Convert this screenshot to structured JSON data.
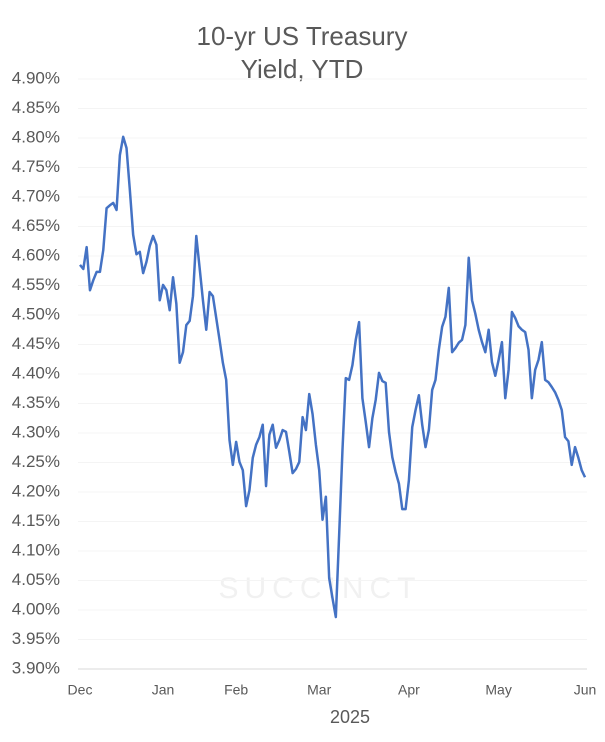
{
  "chart_data": {
    "type": "line",
    "title": "10-yr US Treasury Yield, YTD",
    "x_label": "2025",
    "watermark": "SUCCINCT",
    "color": "#4472c4",
    "grid": true,
    "ylim": [
      3.9,
      4.9
    ],
    "yticks": [
      {
        "value": 3.9,
        "label": "3.90%"
      },
      {
        "value": 3.95,
        "label": "3.95%"
      },
      {
        "value": 4.0,
        "label": "4.00%"
      },
      {
        "value": 4.05,
        "label": "4.05%"
      },
      {
        "value": 4.1,
        "label": "4.10%"
      },
      {
        "value": 4.15,
        "label": "4.15%"
      },
      {
        "value": 4.2,
        "label": "4.20%"
      },
      {
        "value": 4.25,
        "label": "4.25%"
      },
      {
        "value": 4.3,
        "label": "4.30%"
      },
      {
        "value": 4.35,
        "label": "4.35%"
      },
      {
        "value": 4.4,
        "label": "4.40%"
      },
      {
        "value": 4.45,
        "label": "4.45%"
      },
      {
        "value": 4.5,
        "label": "4.50%"
      },
      {
        "value": 4.55,
        "label": "4.55%"
      },
      {
        "value": 4.6,
        "label": "4.60%"
      },
      {
        "value": 4.65,
        "label": "4.65%"
      },
      {
        "value": 4.7,
        "label": "4.70%"
      },
      {
        "value": 4.75,
        "label": "4.75%"
      },
      {
        "value": 4.8,
        "label": "4.80%"
      },
      {
        "value": 4.85,
        "label": "4.85%"
      },
      {
        "value": 4.9,
        "label": "4.90%"
      }
    ],
    "categories": [
      "Dec",
      null,
      null,
      null,
      null,
      null,
      null,
      null,
      null,
      null,
      null,
      null,
      null,
      null,
      null,
      null,
      null,
      null,
      null,
      null,
      null,
      null,
      null,
      null,
      null,
      "Jan",
      null,
      null,
      null,
      null,
      null,
      null,
      null,
      null,
      null,
      null,
      null,
      null,
      null,
      null,
      null,
      null,
      null,
      null,
      null,
      null,
      null,
      "Feb",
      null,
      null,
      null,
      null,
      null,
      null,
      null,
      null,
      null,
      null,
      null,
      null,
      null,
      null,
      null,
      null,
      null,
      null,
      null,
      null,
      null,
      null,
      null,
      null,
      "Mar",
      null,
      null,
      null,
      null,
      null,
      null,
      null,
      null,
      null,
      null,
      null,
      null,
      null,
      null,
      null,
      null,
      null,
      null,
      null,
      null,
      null,
      null,
      null,
      null,
      null,
      null,
      "Apr",
      null,
      null,
      null,
      null,
      null,
      null,
      null,
      null,
      null,
      null,
      null,
      null,
      null,
      null,
      null,
      null,
      null,
      null,
      null,
      null,
      null,
      null,
      null,
      null,
      null,
      null,
      "May",
      null,
      null,
      null,
      null,
      null,
      null,
      null,
      null,
      null,
      null,
      null,
      null,
      null,
      null,
      null,
      null,
      null,
      null,
      null,
      null,
      null,
      null,
      null,
      null,
      null,
      "Jun"
    ],
    "values": [
      4.585,
      4.578,
      4.615,
      4.542,
      4.559,
      4.573,
      4.573,
      4.61,
      4.681,
      4.686,
      4.69,
      4.678,
      4.771,
      4.802,
      4.783,
      4.712,
      4.636,
      4.603,
      4.607,
      4.571,
      4.59,
      4.617,
      4.634,
      4.619,
      4.525,
      4.551,
      4.542,
      4.508,
      4.564,
      4.519,
      4.419,
      4.437,
      4.483,
      4.49,
      4.532,
      4.634,
      4.58,
      4.525,
      4.475,
      4.539,
      4.532,
      4.495,
      4.458,
      4.419,
      4.39,
      4.288,
      4.246,
      4.285,
      4.251,
      4.237,
      4.176,
      4.203,
      4.258,
      4.28,
      4.293,
      4.314,
      4.21,
      4.297,
      4.314,
      4.275,
      4.288,
      4.305,
      4.302,
      4.268,
      4.232,
      4.239,
      4.251,
      4.327,
      4.305,
      4.366,
      4.332,
      4.28,
      4.237,
      4.153,
      4.192,
      4.054,
      4.02,
      3.988,
      4.127,
      4.271,
      4.393,
      4.39,
      4.415,
      4.458,
      4.488,
      4.359,
      4.319,
      4.276,
      4.325,
      4.356,
      4.402,
      4.388,
      4.385,
      4.302,
      4.259,
      4.234,
      4.214,
      4.171,
      4.171,
      4.22,
      4.31,
      4.339,
      4.364,
      4.314,
      4.276,
      4.305,
      4.373,
      4.39,
      4.441,
      4.48,
      4.497,
      4.546,
      4.437,
      4.444,
      4.453,
      4.458,
      4.483,
      4.597,
      4.525,
      4.502,
      4.475,
      4.454,
      4.437,
      4.475,
      4.42,
      4.397,
      4.424,
      4.454,
      4.359,
      4.407,
      4.505,
      4.495,
      4.481,
      4.475,
      4.471,
      4.441,
      4.359,
      4.407,
      4.424,
      4.454,
      4.39,
      4.386,
      4.378,
      4.369,
      4.356,
      4.339,
      4.293,
      4.286,
      4.246,
      4.276,
      4.258,
      4.237,
      4.225
    ]
  }
}
